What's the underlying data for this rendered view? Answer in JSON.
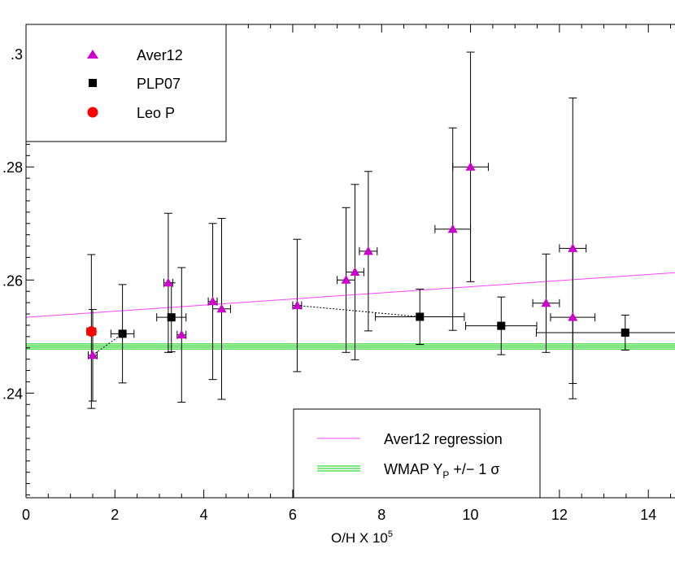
{
  "chart_data": {
    "type": "scatter",
    "xlabel": "O/H X 10",
    "xlabel_sup": "5",
    "ylabel": "",
    "xlim": [
      0,
      14.6
    ],
    "ylim": [
      0.2215,
      0.3052
    ],
    "x_ticks": [
      0,
      2,
      4,
      6,
      8,
      10,
      12,
      14
    ],
    "x_tick_labels": [
      "0",
      "2",
      "4",
      "6",
      "8",
      "10",
      "12",
      "14"
    ],
    "y_ticks": [
      0.24,
      0.26,
      0.28,
      0.3
    ],
    "y_tick_labels": [
      ".24",
      ".26",
      ".28",
      ".3"
    ],
    "grid": false,
    "series": [
      {
        "name": "Aver12",
        "marker": "triangle",
        "color": "#cc00cc",
        "points": [
          {
            "x": 1.5,
            "y": 0.2467,
            "yerr": 0.0081,
            "xerr": 0.1
          },
          {
            "x": 3.2,
            "y": 0.2595,
            "yerr": 0.0123,
            "xerr": 0.1
          },
          {
            "x": 3.5,
            "y": 0.2503,
            "yerr": 0.0119,
            "xerr": 0.1
          },
          {
            "x": 4.2,
            "y": 0.2562,
            "yerr": 0.0138,
            "xerr": 0.1
          },
          {
            "x": 4.4,
            "y": 0.2549,
            "yerr": 0.016,
            "xerr": 0.2
          },
          {
            "x": 6.1,
            "y": 0.2555,
            "yerr": 0.0117,
            "xerr": 0.1
          },
          {
            "x": 7.2,
            "y": 0.26,
            "yerr": 0.0128,
            "xerr": 0.2
          },
          {
            "x": 7.4,
            "y": 0.2614,
            "yerr": 0.0155,
            "xerr": 0.2
          },
          {
            "x": 7.7,
            "y": 0.2651,
            "yerr": 0.0141,
            "xerr": 0.2
          },
          {
            "x": 9.6,
            "y": 0.269,
            "yerr": 0.0179,
            "xerr": 0.4
          },
          {
            "x": 10.0,
            "y": 0.28,
            "yerr": 0.0203,
            "xerr": 0.4
          },
          {
            "x": 11.7,
            "y": 0.2559,
            "yerr": 0.0087,
            "xerr": 0.3
          },
          {
            "x": 12.3,
            "y": 0.2656,
            "yerr": 0.0266,
            "xerr": 0.3
          },
          {
            "x": 12.3,
            "y": 0.2534,
            "yerr": 0.0117,
            "xerr": 0.5
          }
        ]
      },
      {
        "name": "PLP07",
        "marker": "square",
        "color": "#000000",
        "points": [
          {
            "x": 2.17,
            "y": 0.2505,
            "yerr": 0.0087,
            "xerr": 0.26
          },
          {
            "x": 3.27,
            "y": 0.2534,
            "yerr": 0.0061,
            "xerr": 0.33
          },
          {
            "x": 8.86,
            "y": 0.2535,
            "yerr": 0.0049,
            "xerr": 1.0
          },
          {
            "x": 10.69,
            "y": 0.2519,
            "yerr": 0.0051,
            "xerr": 0.8
          },
          {
            "x": 13.48,
            "y": 0.2507,
            "yerr": 0.0031,
            "xerr": 2.0
          }
        ]
      },
      {
        "name": "Leo P",
        "marker": "circle",
        "color": "#ff0000",
        "points": [
          {
            "x": 1.47,
            "y": 0.2509,
            "yerr": 0.0136,
            "xerr": 0.1
          }
        ]
      }
    ],
    "dotted_links": [
      {
        "from": [
          1.5,
          0.2467
        ],
        "to": [
          2.17,
          0.2505
        ]
      },
      {
        "from": [
          6.1,
          0.2555
        ],
        "to": [
          8.86,
          0.2535
        ]
      }
    ],
    "regression": {
      "name": "Aver12 regression",
      "color": "#ff44ff",
      "x": [
        0,
        14.6
      ],
      "y": [
        0.2534,
        0.2613
      ]
    },
    "wmap": {
      "name": "WMAP Y",
      "name_sub": "P",
      "name_suffix": " +/− 1 σ",
      "color": "#00cc00",
      "y_lines": [
        0.2478,
        0.2481,
        0.2484,
        0.2487
      ]
    },
    "legend_top": [
      "Aver12",
      "PLP07",
      "Leo P"
    ],
    "legend_bottom": [
      "Aver12 regression",
      "WMAP Y"
    ]
  }
}
